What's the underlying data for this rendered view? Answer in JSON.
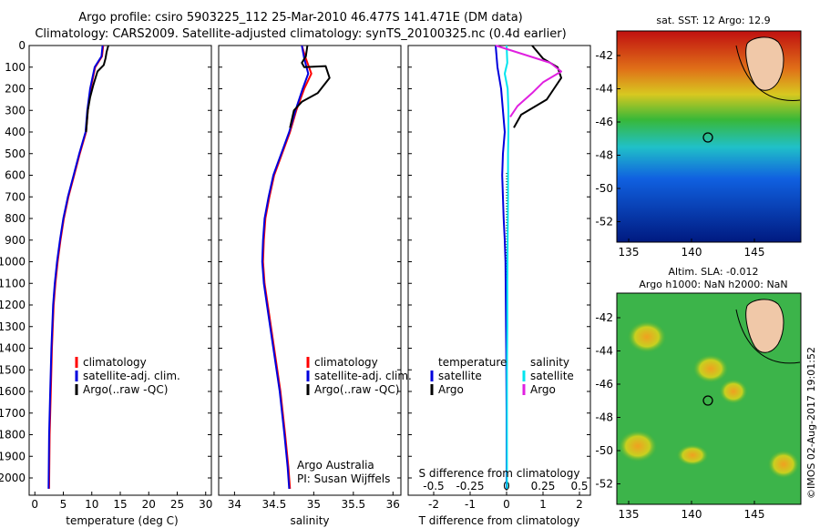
{
  "titles": {
    "line1": "Argo profile: csiro 5903225_112 25-Mar-2010 46.477S 141.471E (DM data)",
    "line2": "Climatology: CARS2009. Satellite-adjusted climatology: synTS_20100325.nc (0.4d earlier)"
  },
  "colors": {
    "climatology": "#ff0000",
    "satellite": "#0000dd",
    "argo": "#000000",
    "sal_satellite": "#00e5ee",
    "sal_argo": "#e020e0"
  },
  "chart_data": [
    {
      "type": "line",
      "name": "temperature",
      "xlabel": "temperature (deg C)",
      "xlim": [
        -1,
        31
      ],
      "ylim": [
        2080,
        0
      ],
      "xticks": [
        "0",
        "5",
        "10",
        "15",
        "20",
        "25",
        "30"
      ],
      "xtick_values": [
        0,
        5,
        10,
        15,
        20,
        25,
        30
      ],
      "yticks": [
        "0",
        "100",
        "200",
        "300",
        "400",
        "500",
        "600",
        "700",
        "800",
        "900",
        "1000",
        "1100",
        "1200",
        "1300",
        "1400",
        "1500",
        "1600",
        "1700",
        "1800",
        "1900",
        "2000"
      ],
      "ytick_values": [
        0,
        100,
        200,
        300,
        400,
        500,
        600,
        700,
        800,
        900,
        1000,
        1100,
        1200,
        1300,
        1400,
        1500,
        1600,
        1700,
        1800,
        1900,
        2000
      ],
      "legend": [
        "climatology",
        "satellite-adj. clim.",
        "Argo(..raw -QC)"
      ],
      "series": [
        {
          "name": "climatology",
          "color": "#ff0000",
          "x": [
            12.0,
            11.8,
            10.6,
            9.8,
            9.3,
            9.0,
            7.9,
            6.9,
            5.9,
            5.1,
            4.5,
            4.0,
            3.6,
            3.3,
            3.0,
            2.8,
            2.6,
            2.5
          ],
          "y": [
            0,
            50,
            100,
            200,
            300,
            400,
            500,
            600,
            700,
            800,
            900,
            1000,
            1100,
            1200,
            1400,
            1600,
            1800,
            2050
          ]
        },
        {
          "name": "satellite-adj. clim.",
          "color": "#0000dd",
          "x": [
            11.9,
            11.7,
            10.5,
            9.7,
            9.2,
            8.9,
            7.8,
            6.8,
            5.8,
            5.0,
            4.4,
            3.9,
            3.5,
            3.2,
            2.9,
            2.7,
            2.5,
            2.4
          ],
          "y": [
            0,
            50,
            100,
            200,
            300,
            400,
            500,
            600,
            700,
            800,
            900,
            1000,
            1100,
            1200,
            1400,
            1600,
            1800,
            2050
          ]
        },
        {
          "name": "Argo(..raw -QC)",
          "color": "#000000",
          "x": [
            12.9,
            12.6,
            12.4,
            12.1,
            11.0,
            10.3,
            9.7,
            9.3,
            9.0
          ],
          "y": [
            0,
            30,
            60,
            90,
            120,
            180,
            240,
            300,
            400
          ]
        }
      ]
    },
    {
      "type": "line",
      "name": "salinity",
      "xlabel": "salinity",
      "xlim": [
        33.8,
        36.1
      ],
      "ylim": [
        2080,
        0
      ],
      "xticks": [
        "34",
        "34.5",
        "35",
        "35.5",
        "36"
      ],
      "xtick_values": [
        34,
        34.5,
        35,
        35.5,
        36
      ],
      "legend": [
        "climatology",
        "satellite-adj. clim.",
        "Argo(..raw -QC)"
      ],
      "annotation": [
        "Argo Australia",
        "PI: Susan Wijffels"
      ],
      "series": [
        {
          "name": "climatology",
          "color": "#ff0000",
          "x": [
            34.85,
            34.9,
            34.97,
            34.88,
            34.78,
            34.7,
            34.6,
            34.5,
            34.44,
            34.39,
            34.37,
            34.36,
            34.38,
            34.42,
            34.5,
            34.58,
            34.64,
            34.68,
            34.7
          ],
          "y": [
            0,
            60,
            130,
            200,
            300,
            400,
            500,
            600,
            700,
            800,
            900,
            1000,
            1100,
            1200,
            1400,
            1600,
            1800,
            1950,
            2050
          ]
        },
        {
          "name": "satellite-adj. clim.",
          "color": "#0000dd",
          "x": [
            34.85,
            34.88,
            34.93,
            34.86,
            34.77,
            34.69,
            34.59,
            34.49,
            34.43,
            34.38,
            34.36,
            34.35,
            34.37,
            34.41,
            34.49,
            34.57,
            34.63,
            34.67,
            34.69
          ],
          "y": [
            0,
            60,
            130,
            200,
            300,
            400,
            500,
            600,
            700,
            800,
            900,
            1000,
            1100,
            1200,
            1400,
            1600,
            1800,
            1950,
            2050
          ]
        },
        {
          "name": "Argo(..raw -QC)",
          "color": "#000000",
          "x": [
            34.92,
            34.9,
            34.85,
            34.88,
            35.15,
            35.2,
            35.05,
            34.85,
            34.75,
            34.7
          ],
          "y": [
            0,
            50,
            80,
            100,
            95,
            150,
            220,
            260,
            300,
            380
          ]
        }
      ]
    },
    {
      "type": "line",
      "name": "difference",
      "xlabel": "T difference from climatology",
      "x2label": "S difference from climatology",
      "xlim": [
        -2.7,
        2.3
      ],
      "ylim": [
        2080,
        0
      ],
      "xticks": [
        "-2",
        "-1",
        "0",
        "1",
        "2"
      ],
      "xtick_values": [
        -2,
        -1,
        0,
        1,
        2
      ],
      "x2ticks": [
        "-0.5",
        "-0.25",
        "0",
        "0.25",
        "0.5"
      ],
      "x2tick_values": [
        -0.5,
        -0.25,
        0,
        0.25,
        0.5
      ],
      "legend_left": {
        "header": "temperature",
        "items": [
          "satellite",
          "Argo"
        ]
      },
      "legend_right": {
        "header": "salinity",
        "items": [
          "satellite",
          "Argo"
        ]
      },
      "series": [
        {
          "name": "temperature satellite",
          "color": "#0000dd",
          "x": [
            -0.3,
            -0.25,
            -0.15,
            -0.1,
            -0.05,
            -0.1,
            -0.12,
            -0.1,
            -0.08,
            -0.05,
            -0.03,
            -0.02,
            -0.01,
            0,
            0
          ],
          "y": [
            0,
            100,
            200,
            300,
            400,
            500,
            600,
            700,
            800,
            900,
            1000,
            1200,
            1400,
            1700,
            2050
          ]
        },
        {
          "name": "temperature Argo",
          "color": "#000000",
          "x": [
            0.7,
            1.0,
            1.4,
            1.5,
            1.3,
            1.1,
            0.4,
            0.2
          ],
          "y": [
            0,
            60,
            100,
            150,
            200,
            250,
            320,
            380
          ]
        },
        {
          "name": "salinity satellite",
          "color": "#00e5ee",
          "x": [
            0,
            0.02,
            -0.05,
            0.03,
            0.05,
            0.05,
            0.04,
            0.04,
            0.03,
            0.02,
            0.02,
            0.01,
            0.01,
            0.01,
            0.01
          ],
          "y": [
            0,
            80,
            130,
            200,
            300,
            400,
            500,
            700,
            900,
            1100,
            1300,
            1500,
            1700,
            1900,
            2050
          ]
        },
        {
          "name": "salinity Argo",
          "color": "#e020e0",
          "x": [
            -0.3,
            1.2,
            1.5,
            1.0,
            0.7,
            0.3,
            0.1
          ],
          "y": [
            0,
            80,
            120,
            170,
            220,
            280,
            330
          ]
        }
      ]
    }
  ],
  "maps": {
    "sst": {
      "title": "sat. SST: 12 Argo: 12.9",
      "lat_ticks": [
        "-42",
        "-44",
        "-46",
        "-48",
        "-50",
        "-52"
      ],
      "lon_ticks": [
        "135",
        "140",
        "145"
      ]
    },
    "sla": {
      "title1": "Altim. SLA: -0.012",
      "title2": "Argo h1000: NaN h2000: NaN",
      "lat_ticks": [
        "-42",
        "-44",
        "-46",
        "-48",
        "-50",
        "-52"
      ],
      "lon_ticks": [
        "135",
        "140",
        "145"
      ]
    }
  },
  "credit": "©IMOS 02-Aug-2017 19:01:52"
}
